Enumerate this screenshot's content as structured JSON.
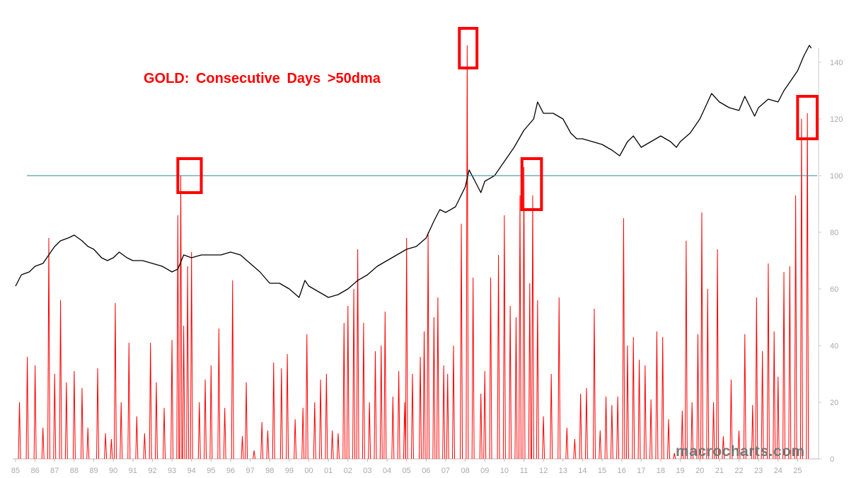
{
  "chart_data": {
    "type": "line",
    "title": "GOLD: Consecutive Days >50dma",
    "watermark": "macrocharts.com",
    "x_tick_labels": [
      "85",
      "86",
      "87",
      "88",
      "89",
      "90",
      "91",
      "92",
      "93",
      "94",
      "95",
      "96",
      "97",
      "98",
      "99",
      "00",
      "01",
      "02",
      "03",
      "04",
      "05",
      "06",
      "07",
      "08",
      "09",
      "10",
      "11",
      "12",
      "13",
      "14",
      "15",
      "16",
      "17",
      "18",
      "19",
      "20",
      "21",
      "22",
      "23",
      "24",
      "25"
    ],
    "x_range": [
      1985.0,
      2026.0
    ],
    "y_right": {
      "ticks": [
        0,
        20,
        40,
        60,
        80,
        100,
        120,
        140
      ],
      "range": [
        0,
        150
      ]
    },
    "reference_line": {
      "y": 100,
      "color": "#31859c"
    },
    "colors": {
      "streak": "#ff0000",
      "price": "#000000",
      "box": "#ff0000",
      "axis_text": "#aaaaaa"
    },
    "series": [
      {
        "style": "black line, price scaled to right axis",
        "points": [
          [
            1985.0,
            61
          ],
          [
            1985.3,
            65
          ],
          [
            1985.7,
            66
          ],
          [
            1986.0,
            68
          ],
          [
            1986.4,
            69
          ],
          [
            1986.7,
            72
          ],
          [
            1987.0,
            75
          ],
          [
            1987.3,
            77
          ],
          [
            1987.7,
            78
          ],
          [
            1988.0,
            79
          ],
          [
            1988.4,
            77
          ],
          [
            1988.7,
            75
          ],
          [
            1989.0,
            74
          ],
          [
            1989.4,
            71
          ],
          [
            1989.7,
            70
          ],
          [
            1990.0,
            71
          ],
          [
            1990.3,
            73
          ],
          [
            1990.7,
            71
          ],
          [
            1991.0,
            70
          ],
          [
            1991.5,
            70
          ],
          [
            1992.0,
            69
          ],
          [
            1992.5,
            68
          ],
          [
            1993.0,
            66
          ],
          [
            1993.3,
            67
          ],
          [
            1993.6,
            72
          ],
          [
            1994.0,
            71
          ],
          [
            1994.5,
            72
          ],
          [
            1995.0,
            72
          ],
          [
            1995.5,
            72
          ],
          [
            1996.0,
            73
          ],
          [
            1996.5,
            72
          ],
          [
            1997.0,
            69
          ],
          [
            1997.5,
            66
          ],
          [
            1998.0,
            62
          ],
          [
            1998.5,
            62
          ],
          [
            1999.0,
            60
          ],
          [
            1999.5,
            57
          ],
          [
            1999.8,
            63
          ],
          [
            2000.0,
            61
          ],
          [
            2000.5,
            59
          ],
          [
            2001.0,
            57
          ],
          [
            2001.5,
            58
          ],
          [
            2002.0,
            60
          ],
          [
            2002.5,
            63
          ],
          [
            2003.0,
            65
          ],
          [
            2003.5,
            68
          ],
          [
            2004.0,
            70
          ],
          [
            2004.5,
            72
          ],
          [
            2005.0,
            74
          ],
          [
            2005.5,
            75
          ],
          [
            2006.0,
            78
          ],
          [
            2006.4,
            84
          ],
          [
            2006.7,
            88
          ],
          [
            2007.0,
            87
          ],
          [
            2007.5,
            89
          ],
          [
            2008.0,
            96
          ],
          [
            2008.2,
            102
          ],
          [
            2008.5,
            98
          ],
          [
            2008.8,
            94
          ],
          [
            2009.0,
            98
          ],
          [
            2009.5,
            100
          ],
          [
            2010.0,
            105
          ],
          [
            2010.5,
            110
          ],
          [
            2011.0,
            116
          ],
          [
            2011.5,
            120
          ],
          [
            2011.7,
            126
          ],
          [
            2012.0,
            122
          ],
          [
            2012.5,
            122
          ],
          [
            2013.0,
            120
          ],
          [
            2013.4,
            115
          ],
          [
            2013.7,
            113
          ],
          [
            2014.0,
            113
          ],
          [
            2014.5,
            112
          ],
          [
            2015.0,
            111
          ],
          [
            2015.5,
            109
          ],
          [
            2015.9,
            107
          ],
          [
            2016.3,
            112
          ],
          [
            2016.6,
            114
          ],
          [
            2017.0,
            110
          ],
          [
            2017.5,
            112
          ],
          [
            2018.0,
            114
          ],
          [
            2018.5,
            112
          ],
          [
            2018.8,
            110
          ],
          [
            2019.0,
            112
          ],
          [
            2019.5,
            115
          ],
          [
            2020.0,
            120
          ],
          [
            2020.6,
            129
          ],
          [
            2021.0,
            126
          ],
          [
            2021.5,
            124
          ],
          [
            2022.0,
            123
          ],
          [
            2022.3,
            128
          ],
          [
            2022.8,
            121
          ],
          [
            2023.0,
            124
          ],
          [
            2023.5,
            127
          ],
          [
            2024.0,
            126
          ],
          [
            2024.3,
            130
          ],
          [
            2024.7,
            134
          ],
          [
            2025.0,
            137
          ],
          [
            2025.3,
            142
          ],
          [
            2025.6,
            146
          ],
          [
            2025.7,
            145
          ]
        ]
      },
      {
        "style": "red spikes, consecutive days above 50dma (right axis)",
        "points": [
          [
            1985.2,
            20
          ],
          [
            1985.6,
            36
          ],
          [
            1986.0,
            33
          ],
          [
            1986.4,
            11
          ],
          [
            1986.7,
            78
          ],
          [
            1987.0,
            30
          ],
          [
            1987.3,
            56
          ],
          [
            1987.6,
            27
          ],
          [
            1988.0,
            31
          ],
          [
            1988.4,
            25
          ],
          [
            1988.7,
            11
          ],
          [
            1989.2,
            32
          ],
          [
            1989.6,
            9
          ],
          [
            1989.9,
            7
          ],
          [
            1990.1,
            55
          ],
          [
            1990.4,
            20
          ],
          [
            1990.8,
            41
          ],
          [
            1991.2,
            15
          ],
          [
            1991.6,
            9
          ],
          [
            1991.9,
            41
          ],
          [
            1992.2,
            27
          ],
          [
            1992.6,
            18
          ],
          [
            1993.0,
            42
          ],
          [
            1993.3,
            86
          ],
          [
            1993.45,
            100
          ],
          [
            1993.6,
            47
          ],
          [
            1993.8,
            68
          ],
          [
            1994.0,
            73
          ],
          [
            1994.4,
            20
          ],
          [
            1994.7,
            28
          ],
          [
            1995.0,
            33
          ],
          [
            1995.4,
            46
          ],
          [
            1995.7,
            18
          ],
          [
            1996.1,
            63
          ],
          [
            1996.6,
            8
          ],
          [
            1996.8,
            27
          ],
          [
            1997.2,
            3
          ],
          [
            1997.6,
            13
          ],
          [
            1997.9,
            10
          ],
          [
            1998.2,
            34
          ],
          [
            1998.6,
            32
          ],
          [
            1998.9,
            37
          ],
          [
            1999.3,
            14
          ],
          [
            1999.7,
            18
          ],
          [
            1999.9,
            44
          ],
          [
            2000.3,
            20
          ],
          [
            2000.6,
            28
          ],
          [
            2000.9,
            30
          ],
          [
            2001.2,
            10
          ],
          [
            2001.5,
            9
          ],
          [
            2001.8,
            48
          ],
          [
            2002.0,
            54
          ],
          [
            2002.3,
            60
          ],
          [
            2002.5,
            74
          ],
          [
            2002.8,
            48
          ],
          [
            2003.1,
            20
          ],
          [
            2003.4,
            38
          ],
          [
            2003.7,
            40
          ],
          [
            2003.9,
            52
          ],
          [
            2004.3,
            22
          ],
          [
            2004.6,
            31
          ],
          [
            2004.9,
            20
          ],
          [
            2005.0,
            78
          ],
          [
            2005.3,
            30
          ],
          [
            2005.7,
            36
          ],
          [
            2005.9,
            45
          ],
          [
            2006.1,
            80
          ],
          [
            2006.4,
            50
          ],
          [
            2006.6,
            57
          ],
          [
            2006.9,
            33
          ],
          [
            2007.1,
            30
          ],
          [
            2007.4,
            40
          ],
          [
            2007.8,
            83
          ],
          [
            2008.1,
            146
          ],
          [
            2008.4,
            64
          ],
          [
            2008.8,
            23
          ],
          [
            2009.0,
            31
          ],
          [
            2009.3,
            64
          ],
          [
            2009.7,
            72
          ],
          [
            2010.0,
            86
          ],
          [
            2010.3,
            54
          ],
          [
            2010.6,
            50
          ],
          [
            2010.8,
            93
          ],
          [
            2011.0,
            103
          ],
          [
            2011.3,
            62
          ],
          [
            2011.45,
            93
          ],
          [
            2011.7,
            56
          ],
          [
            2012.0,
            15
          ],
          [
            2012.4,
            30
          ],
          [
            2012.8,
            57
          ],
          [
            2013.2,
            11
          ],
          [
            2013.6,
            7
          ],
          [
            2013.9,
            23
          ],
          [
            2014.2,
            25
          ],
          [
            2014.6,
            53
          ],
          [
            2014.9,
            10
          ],
          [
            2015.2,
            22
          ],
          [
            2015.5,
            19
          ],
          [
            2015.8,
            22
          ],
          [
            2016.1,
            85
          ],
          [
            2016.3,
            40
          ],
          [
            2016.6,
            43
          ],
          [
            2016.9,
            35
          ],
          [
            2017.2,
            33
          ],
          [
            2017.5,
            21
          ],
          [
            2017.8,
            45
          ],
          [
            2018.1,
            43
          ],
          [
            2018.4,
            14
          ],
          [
            2018.7,
            2
          ],
          [
            2019.1,
            17
          ],
          [
            2019.3,
            77
          ],
          [
            2019.6,
            20
          ],
          [
            2019.9,
            44
          ],
          [
            2020.1,
            87
          ],
          [
            2020.4,
            60
          ],
          [
            2020.7,
            20
          ],
          [
            2020.9,
            74
          ],
          [
            2021.2,
            8
          ],
          [
            2021.6,
            28
          ],
          [
            2022.0,
            10
          ],
          [
            2022.3,
            44
          ],
          [
            2022.7,
            19
          ],
          [
            2022.9,
            57
          ],
          [
            2023.2,
            38
          ],
          [
            2023.5,
            69
          ],
          [
            2023.8,
            45
          ],
          [
            2024.0,
            29
          ],
          [
            2024.3,
            66
          ],
          [
            2024.6,
            68
          ],
          [
            2024.9,
            93
          ],
          [
            2025.2,
            120
          ],
          [
            2025.5,
            122
          ]
        ]
      }
    ],
    "highlight_boxes": [
      {
        "x": [
          1993.3,
          1994.5
        ],
        "y": [
          94,
          106
        ]
      },
      {
        "x": [
          2007.7,
          2008.6
        ],
        "y": [
          138,
          152
        ]
      },
      {
        "x": [
          2010.9,
          2011.9
        ],
        "y": [
          88,
          106
        ]
      },
      {
        "x": [
          2025.0,
          2026.0
        ],
        "y": [
          113,
          128
        ]
      }
    ]
  }
}
